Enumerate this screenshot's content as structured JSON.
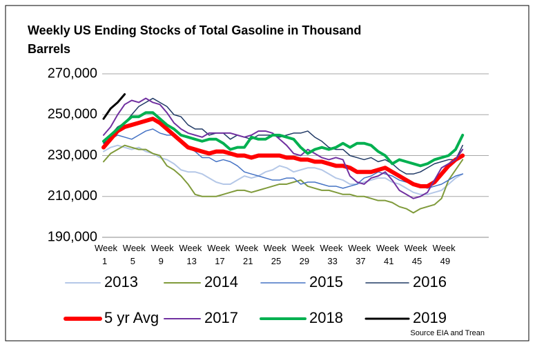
{
  "chart_data": {
    "type": "line",
    "title_lines": [
      "Weekly US Ending Stocks of Total Gasoline in Thousand",
      "Barrels"
    ],
    "source": "Source EIA and Trean",
    "categories": [
      "Week 1",
      null,
      null,
      null,
      "Week 5",
      null,
      null,
      null,
      "Week 9",
      null,
      null,
      null,
      "Week 13",
      null,
      null,
      null,
      "Week 17",
      null,
      null,
      null,
      "Week 21",
      null,
      null,
      null,
      "Week 25",
      null,
      null,
      null,
      "Week 29",
      null,
      null,
      null,
      "Week 33",
      null,
      null,
      null,
      "Week 37",
      null,
      null,
      null,
      "Week 41",
      null,
      null,
      null,
      "Week 45",
      null,
      null,
      null,
      "Week 49",
      null,
      null,
      null
    ],
    "ylim": [
      190000,
      270000
    ],
    "yticks": [
      {
        "value": 190000,
        "label": "190,000"
      },
      {
        "value": 210000,
        "label": "210,000"
      },
      {
        "value": 230000,
        "label": "230,000"
      },
      {
        "value": 250000,
        "label": "250,000"
      },
      {
        "value": 270000,
        "label": "270,000"
      }
    ],
    "grid": true,
    "legend": "bottom",
    "series": [
      {
        "name": "2013",
        "color": "#b4c7e7",
        "width": 2,
        "values": [
          232000,
          234000,
          235000,
          234000,
          233000,
          234000,
          232000,
          231000,
          229000,
          228000,
          226000,
          223000,
          222000,
          222000,
          221000,
          219000,
          217000,
          216000,
          216000,
          218000,
          220000,
          219000,
          220000,
          222000,
          223000,
          225000,
          224000,
          222000,
          223000,
          224000,
          224000,
          223000,
          221000,
          219000,
          218000,
          216000,
          216000,
          217000,
          218000,
          219000,
          219000,
          217000,
          216000,
          214000,
          212000,
          211000,
          211000,
          212000,
          213000,
          216000,
          219000,
          221000
        ]
      },
      {
        "name": "2014",
        "color": "#7f9a3a",
        "width": 2,
        "values": [
          227000,
          231000,
          233000,
          235000,
          234000,
          233000,
          233000,
          231000,
          230000,
          225000,
          223000,
          220000,
          216000,
          211000,
          210000,
          210000,
          210000,
          211000,
          212000,
          213000,
          213000,
          212000,
          213000,
          214000,
          215000,
          216000,
          216000,
          217000,
          218000,
          215000,
          214000,
          213000,
          213000,
          212000,
          211000,
          211000,
          210000,
          210000,
          209000,
          208000,
          208000,
          207000,
          205000,
          204000,
          202000,
          204000,
          205000,
          206000,
          209000,
          218000,
          223000,
          228000
        ]
      },
      {
        "name": "2015",
        "color": "#4472c4",
        "width": 1.5,
        "values": [
          236000,
          238000,
          240000,
          239000,
          238000,
          240000,
          242000,
          243000,
          241000,
          240000,
          240000,
          237000,
          234000,
          232000,
          229000,
          229000,
          227000,
          228000,
          227000,
          225000,
          222000,
          221000,
          220000,
          219000,
          218000,
          218000,
          219000,
          219000,
          216000,
          217000,
          217000,
          216000,
          215000,
          215000,
          214000,
          215000,
          216000,
          219000,
          220000,
          222000,
          221000,
          220000,
          218000,
          217000,
          216000,
          215000,
          214000,
          215000,
          216000,
          218000,
          220000,
          221000
        ]
      },
      {
        "name": "2016",
        "color": "#1f3864",
        "width": 1.5,
        "values": [
          236000,
          240000,
          244000,
          246000,
          250000,
          254000,
          256000,
          258000,
          256000,
          254000,
          250000,
          249000,
          245000,
          243000,
          243000,
          240000,
          241000,
          241000,
          238000,
          240000,
          239000,
          238000,
          240000,
          240000,
          240000,
          239000,
          240000,
          241000,
          241000,
          242000,
          239000,
          237000,
          234000,
          233000,
          233000,
          230000,
          229000,
          228000,
          229000,
          227000,
          228000,
          226000,
          223000,
          221000,
          221000,
          222000,
          224000,
          226000,
          227000,
          228000,
          228000,
          235000
        ]
      },
      {
        "name": "5 yr Avg",
        "color": "#ff0000",
        "width": 6,
        "values": [
          234000,
          238000,
          242000,
          244000,
          245000,
          246000,
          247000,
          248000,
          246000,
          243000,
          240000,
          237000,
          234000,
          233000,
          232000,
          231000,
          232000,
          232000,
          231000,
          230000,
          230000,
          229000,
          230000,
          230000,
          230000,
          230000,
          229000,
          229000,
          228000,
          228000,
          227000,
          227000,
          226000,
          225000,
          225000,
          224000,
          222000,
          222000,
          222000,
          223000,
          224000,
          222000,
          220000,
          218000,
          216000,
          215000,
          215000,
          217000,
          221000,
          225000,
          228000,
          230000
        ]
      },
      {
        "name": "2017",
        "color": "#7030a0",
        "width": 2,
        "values": [
          240000,
          244000,
          250000,
          255000,
          257000,
          256000,
          258000,
          256000,
          255000,
          251000,
          246000,
          243000,
          241000,
          240000,
          239000,
          241000,
          241000,
          241000,
          241000,
          240000,
          239000,
          240000,
          242000,
          242000,
          241000,
          238000,
          235000,
          231000,
          230000,
          233000,
          231000,
          229000,
          228000,
          229000,
          228000,
          220000,
          217000,
          216000,
          219000,
          220000,
          222000,
          218000,
          213000,
          211000,
          209000,
          210000,
          212000,
          218000,
          224000,
          226000,
          228000,
          233000
        ]
      },
      {
        "name": "2018",
        "color": "#00b050",
        "width": 4,
        "values": [
          237000,
          240000,
          243000,
          246000,
          249000,
          249000,
          251000,
          251000,
          248000,
          245000,
          243000,
          240000,
          239000,
          238000,
          237000,
          238000,
          238000,
          236000,
          233000,
          234000,
          234000,
          239000,
          238000,
          238000,
          240000,
          240000,
          239000,
          238000,
          234000,
          231000,
          233000,
          234000,
          233000,
          234000,
          236000,
          234000,
          236000,
          236000,
          235000,
          232000,
          230000,
          226000,
          228000,
          227000,
          226000,
          225000,
          226000,
          228000,
          229000,
          230000,
          233000,
          240000
        ]
      },
      {
        "name": "2019",
        "color": "#000000",
        "width": 3,
        "values": [
          248000,
          253000,
          256000,
          260000,
          null,
          null,
          null,
          null,
          null,
          null,
          null,
          null,
          null,
          null,
          null,
          null,
          null,
          null,
          null,
          null,
          null,
          null,
          null,
          null,
          null,
          null,
          null,
          null,
          null,
          null,
          null,
          null,
          null,
          null,
          null,
          null,
          null,
          null,
          null,
          null,
          null,
          null,
          null,
          null,
          null,
          null,
          null,
          null,
          null,
          null,
          null,
          null
        ]
      }
    ]
  }
}
